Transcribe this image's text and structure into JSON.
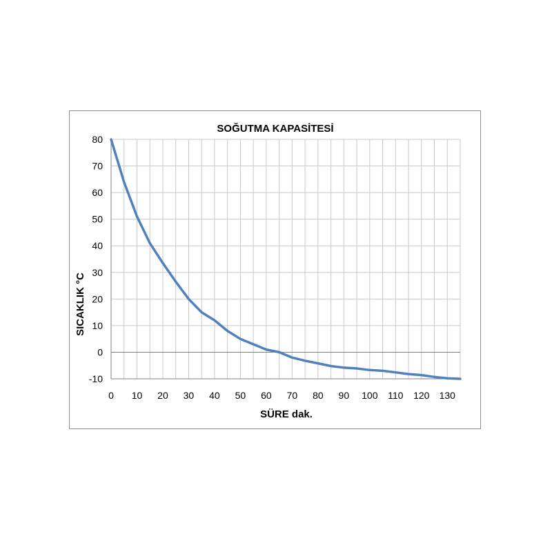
{
  "chart_data": {
    "type": "line",
    "title": "SOĞUTMA KAPASİTESİ",
    "xlabel": "SÜRE dak.",
    "ylabel": "SICAKLIK °C",
    "xlim": [
      0,
      135
    ],
    "ylim": [
      -10,
      80
    ],
    "x_ticks": [
      0,
      10,
      20,
      30,
      40,
      50,
      60,
      70,
      80,
      90,
      100,
      110,
      120,
      130
    ],
    "y_ticks": [
      -10,
      0,
      10,
      20,
      30,
      40,
      50,
      60,
      70,
      80
    ],
    "grid": true,
    "legend": "none",
    "series": [
      {
        "color": "#4f81bd",
        "x": [
          0,
          5,
          10,
          15,
          20,
          25,
          30,
          35,
          40,
          45,
          50,
          55,
          60,
          65,
          70,
          75,
          80,
          85,
          90,
          95,
          100,
          105,
          110,
          115,
          120,
          125,
          130,
          135
        ],
        "y": [
          80,
          64,
          51,
          41,
          33.5,
          26.5,
          20,
          15,
          12,
          8,
          5,
          3,
          1,
          0,
          -2,
          -3.2,
          -4.2,
          -5.2,
          -5.8,
          -6.1,
          -6.7,
          -7,
          -7.6,
          -8.2,
          -8.6,
          -9.3,
          -9.8,
          -10
        ]
      }
    ]
  }
}
